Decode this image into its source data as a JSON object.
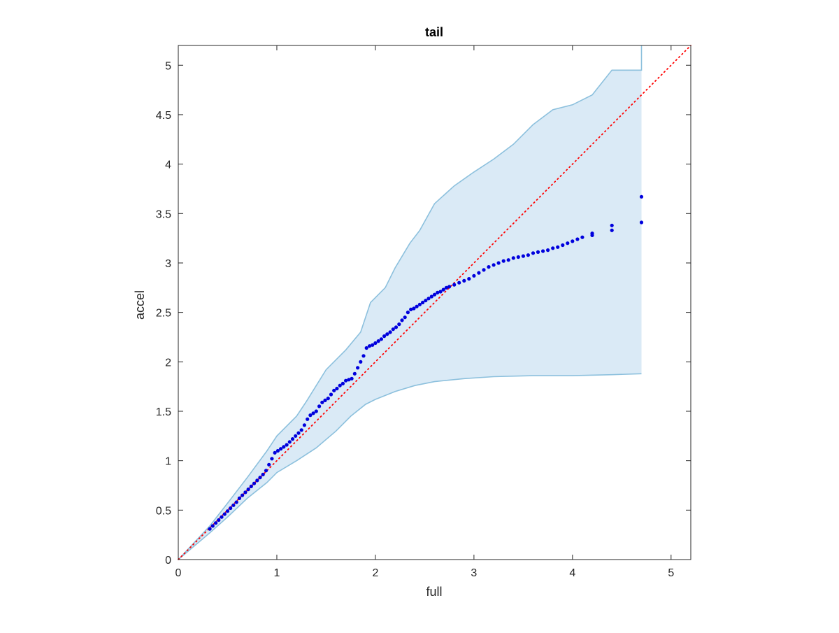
{
  "chart_data": {
    "type": "scatter",
    "title": "tail",
    "xlabel": "full",
    "ylabel": "accel",
    "xlim": [
      0,
      5.2
    ],
    "ylim": [
      0,
      5.2
    ],
    "xticks": [
      0,
      1,
      2,
      3,
      4,
      5
    ],
    "yticks": [
      0,
      0.5,
      1,
      1.5,
      2,
      2.5,
      3,
      3.5,
      4,
      4.5,
      5
    ],
    "xtick_labels": [
      "0",
      "1",
      "2",
      "3",
      "4",
      "5"
    ],
    "ytick_labels": [
      "0",
      "0.5",
      "1",
      "1.5",
      "2",
      "2.5",
      "3",
      "3.5",
      "4",
      "4.5",
      "5"
    ],
    "grid": false,
    "reference_line": {
      "x": [
        0,
        5.2
      ],
      "y": [
        0,
        5.2
      ],
      "color": "#ff0000",
      "style": "dotted"
    },
    "band": {
      "color": "#daeaf6",
      "edge_color": "#8cc0dd",
      "x_upper": [
        0,
        0.32,
        0.5,
        0.7,
        0.9,
        1.0,
        1.2,
        1.3,
        1.5,
        1.7,
        1.85,
        1.95,
        2.1,
        2.2,
        2.35,
        2.45,
        2.6,
        2.8,
        3.0,
        3.2,
        3.4,
        3.6,
        3.8,
        4.0,
        4.2,
        4.4,
        4.6,
        4.7,
        4.7
      ],
      "y_upper": [
        0,
        0.34,
        0.57,
        0.83,
        1.1,
        1.25,
        1.45,
        1.6,
        1.92,
        2.12,
        2.3,
        2.6,
        2.75,
        2.95,
        3.2,
        3.33,
        3.6,
        3.78,
        3.92,
        4.05,
        4.2,
        4.4,
        4.55,
        4.6,
        4.7,
        4.95,
        4.95,
        4.95,
        5.2
      ],
      "x_lower": [
        0,
        0.32,
        0.5,
        0.7,
        0.9,
        1.0,
        1.2,
        1.4,
        1.6,
        1.75,
        1.9,
        2.0,
        2.2,
        2.4,
        2.6,
        2.9,
        3.2,
        3.6,
        4.0,
        4.4,
        4.7
      ],
      "y_lower": [
        0,
        0.27,
        0.43,
        0.62,
        0.78,
        0.88,
        1.0,
        1.13,
        1.3,
        1.45,
        1.57,
        1.62,
        1.7,
        1.76,
        1.8,
        1.83,
        1.85,
        1.86,
        1.86,
        1.87,
        1.88
      ]
    },
    "series": [
      {
        "color": "#0000dd",
        "x": [
          0.32,
          0.35,
          0.38,
          0.41,
          0.44,
          0.47,
          0.5,
          0.53,
          0.56,
          0.59,
          0.62,
          0.65,
          0.68,
          0.71,
          0.74,
          0.77,
          0.8,
          0.83,
          0.86,
          0.89,
          0.92,
          0.95,
          0.98,
          1.01,
          1.04,
          1.07,
          1.1,
          1.13,
          1.16,
          1.19,
          1.22,
          1.25,
          1.28,
          1.31,
          1.34,
          1.37,
          1.4,
          1.43,
          1.46,
          1.49,
          1.52,
          1.55,
          1.58,
          1.61,
          1.64,
          1.67,
          1.7,
          1.73,
          1.76,
          1.79,
          1.82,
          1.85,
          1.88,
          1.91,
          1.94,
          1.97,
          2.0,
          2.03,
          2.06,
          2.09,
          2.12,
          2.15,
          2.18,
          2.21,
          2.24,
          2.27,
          2.3,
          2.33,
          2.36,
          2.39,
          2.42,
          2.45,
          2.48,
          2.51,
          2.54,
          2.57,
          2.6,
          2.63,
          2.66,
          2.69,
          2.72,
          2.75,
          2.8,
          2.85,
          2.9,
          2.95,
          3.0,
          3.05,
          3.1,
          3.15,
          3.2,
          3.25,
          3.3,
          3.35,
          3.4,
          3.45,
          3.5,
          3.55,
          3.6,
          3.65,
          3.7,
          3.75,
          3.8,
          3.85,
          3.9,
          3.95,
          4.0,
          4.05,
          4.1,
          4.2,
          4.2,
          4.4,
          4.4,
          4.7,
          4.7
        ],
        "y": [
          0.31,
          0.34,
          0.37,
          0.4,
          0.43,
          0.46,
          0.49,
          0.52,
          0.55,
          0.58,
          0.62,
          0.65,
          0.68,
          0.71,
          0.74,
          0.77,
          0.8,
          0.83,
          0.86,
          0.9,
          0.96,
          1.02,
          1.08,
          1.1,
          1.12,
          1.14,
          1.16,
          1.19,
          1.22,
          1.25,
          1.28,
          1.31,
          1.36,
          1.42,
          1.46,
          1.48,
          1.5,
          1.55,
          1.59,
          1.61,
          1.63,
          1.67,
          1.71,
          1.73,
          1.76,
          1.78,
          1.81,
          1.82,
          1.83,
          1.88,
          1.94,
          2.0,
          2.06,
          2.14,
          2.16,
          2.17,
          2.19,
          2.21,
          2.23,
          2.26,
          2.28,
          2.3,
          2.33,
          2.35,
          2.38,
          2.42,
          2.45,
          2.5,
          2.53,
          2.54,
          2.56,
          2.58,
          2.6,
          2.62,
          2.64,
          2.66,
          2.68,
          2.7,
          2.71,
          2.73,
          2.75,
          2.76,
          2.78,
          2.8,
          2.82,
          2.84,
          2.87,
          2.9,
          2.93,
          2.96,
          2.98,
          3.0,
          3.02,
          3.03,
          3.05,
          3.06,
          3.07,
          3.08,
          3.1,
          3.11,
          3.12,
          3.13,
          3.15,
          3.16,
          3.18,
          3.2,
          3.22,
          3.24,
          3.26,
          3.28,
          3.3,
          3.33,
          3.38,
          3.41,
          3.67
        ]
      }
    ]
  }
}
